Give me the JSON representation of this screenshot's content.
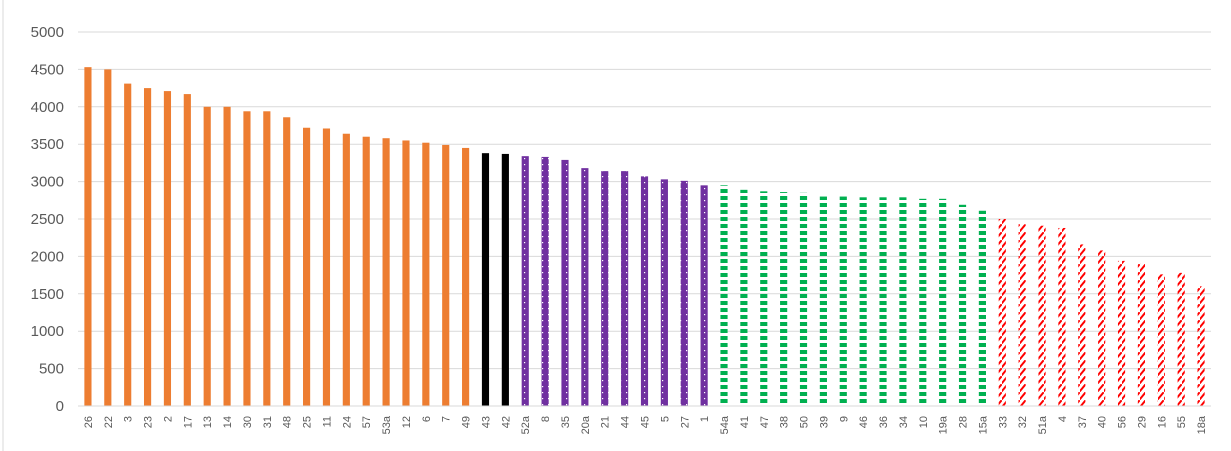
{
  "chart_data": {
    "type": "bar",
    "title": "",
    "xlabel": "",
    "ylabel": "",
    "ylim": [
      0,
      5000
    ],
    "yticks": [
      0,
      500,
      1000,
      1500,
      2000,
      2500,
      3000,
      3500,
      4000,
      4500,
      5000
    ],
    "grid": true,
    "legend": "none",
    "groups": [
      {
        "color": "#ED7D31",
        "pattern": "solid"
      },
      {
        "color": "#000000",
        "pattern": "solid"
      },
      {
        "color": "#7030A0",
        "pattern": "dotted"
      },
      {
        "color": "#00B050",
        "pattern": "dashed"
      },
      {
        "color": "#FF0000",
        "pattern": "hatched"
      }
    ],
    "categories": [
      "26",
      "22",
      "3",
      "23",
      "2",
      "17",
      "13",
      "14",
      "30",
      "31",
      "48",
      "25",
      "11",
      "24",
      "57",
      "53a",
      "12",
      "6",
      "7",
      "49",
      "43",
      "42",
      "52a",
      "8",
      "35",
      "20a",
      "21",
      "44",
      "45",
      "5",
      "27",
      "1",
      "54a",
      "41",
      "47",
      "38",
      "50",
      "39",
      "9",
      "46",
      "36",
      "34",
      "10",
      "19a",
      "28",
      "15a",
      "33",
      "32",
      "51a",
      "4",
      "37",
      "40",
      "56",
      "29",
      "16",
      "55",
      "18a"
    ],
    "values": [
      4530,
      4500,
      4310,
      4250,
      4210,
      4170,
      4000,
      4000,
      3940,
      3940,
      3860,
      3720,
      3710,
      3640,
      3600,
      3580,
      3550,
      3520,
      3490,
      3450,
      3380,
      3370,
      3340,
      3330,
      3290,
      3180,
      3140,
      3140,
      3070,
      3030,
      3010,
      2950,
      2950,
      2890,
      2870,
      2860,
      2850,
      2800,
      2800,
      2790,
      2790,
      2790,
      2770,
      2770,
      2690,
      2610,
      2500,
      2430,
      2410,
      2380,
      2160,
      2080,
      1940,
      1900,
      1760,
      1780,
      1600
    ],
    "group_index": [
      0,
      0,
      0,
      0,
      0,
      0,
      0,
      0,
      0,
      0,
      0,
      0,
      0,
      0,
      0,
      0,
      0,
      0,
      0,
      0,
      1,
      1,
      2,
      2,
      2,
      2,
      2,
      2,
      2,
      2,
      2,
      2,
      3,
      3,
      3,
      3,
      3,
      3,
      3,
      3,
      3,
      3,
      3,
      3,
      3,
      3,
      4,
      4,
      4,
      4,
      4,
      4,
      4,
      4,
      4,
      4,
      4
    ]
  }
}
